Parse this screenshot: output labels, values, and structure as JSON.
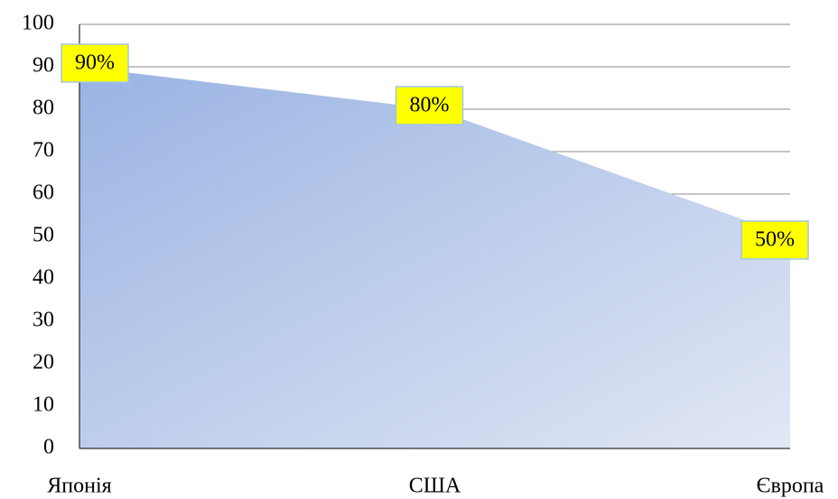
{
  "chart_data": {
    "type": "area",
    "categories": [
      "Японія",
      "США",
      "Європа"
    ],
    "values": [
      90,
      80,
      50
    ],
    "value_labels": [
      "90%",
      "80%",
      "50%"
    ],
    "color": "#9ab3e3",
    "ylim": [
      0,
      100
    ],
    "yticks": [
      0,
      10,
      20,
      30,
      40,
      50,
      60,
      70,
      80,
      90,
      100
    ],
    "grid": true
  }
}
